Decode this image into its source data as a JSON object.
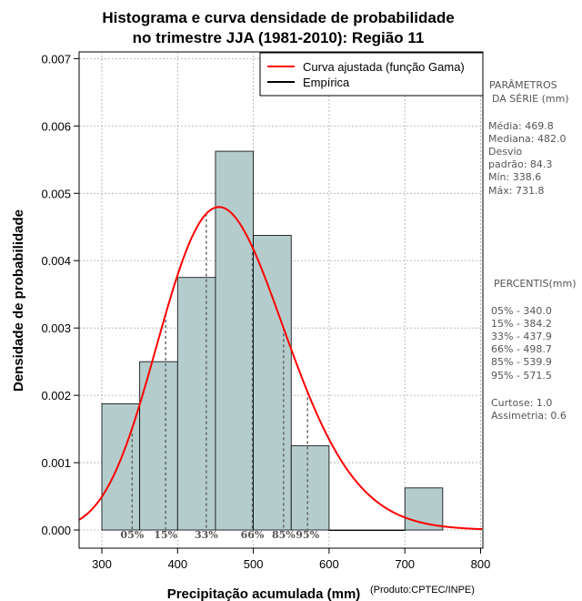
{
  "chart_data": {
    "type": "histogram",
    "title_line1": "Histograma e curva densidade de probabilidade",
    "title_line2": "no trimestre JJA (1981-2010): Região 11",
    "xlabel": "Precipitação acumulada (mm)",
    "ylabel": "Densidade de probabilidade",
    "credit": "(Produto:CPTEC/INPE)",
    "xlim": [
      270,
      803
    ],
    "ylim": [
      -0.00027,
      0.0071
    ],
    "x_ticks": [
      300,
      400,
      500,
      600,
      700,
      800
    ],
    "y_ticks": [
      0.0,
      0.001,
      0.002,
      0.003,
      0.004,
      0.005,
      0.006,
      0.007
    ],
    "y_tick_labels": [
      "0.000",
      "0.001",
      "0.002",
      "0.003",
      "0.004",
      "0.005",
      "0.006",
      "0.007"
    ],
    "bins": [
      {
        "start": 300,
        "end": 350,
        "density": 0.001875
      },
      {
        "start": 350,
        "end": 400,
        "density": 0.0025
      },
      {
        "start": 400,
        "end": 450,
        "density": 0.00375
      },
      {
        "start": 450,
        "end": 500,
        "density": 0.005625
      },
      {
        "start": 500,
        "end": 550,
        "density": 0.004375
      },
      {
        "start": 550,
        "end": 600,
        "density": 0.00125
      },
      {
        "start": 600,
        "end": 650,
        "density": 0.0
      },
      {
        "start": 650,
        "end": 700,
        "density": 0.0
      },
      {
        "start": 700,
        "end": 750,
        "density": 0.000625
      }
    ],
    "gamma_fit": {
      "mean": 469.8,
      "sd": 84.3
    },
    "legend": [
      {
        "label": "Curva ajustada (função Gama)",
        "color": "#ff0000"
      },
      {
        "label": "Empírica",
        "color": "#000000"
      }
    ],
    "percentile_markers": [
      {
        "label": "05%",
        "value": 340.0
      },
      {
        "label": "15%",
        "value": 384.2
      },
      {
        "label": "33%",
        "value": 437.9
      },
      {
        "label": "66%",
        "value": 498.7
      },
      {
        "label": "85%",
        "value": 539.9
      },
      {
        "label": "95%",
        "value": 571.5
      }
    ],
    "colors": {
      "bars": "#b4cccc",
      "curve": "#ff0000",
      "grid": "#aaaaaa"
    }
  },
  "side_panel": {
    "params_title_1": "PARÂMETROS",
    "params_title_2": "DA SÉRIE (mm)",
    "stats": [
      "Média:  469.8",
      "Mediana:  482.0",
      "Desvio",
      "padrão:  84.3",
      "Mín:  338.6",
      "Máx:  731.8"
    ],
    "percentis_title": "PERCENTIS(mm)",
    "percentis": [
      "05% -   340.0",
      "15% -   384.2",
      "33% -   437.9",
      "66% -   498.7",
      "85% -   539.9",
      "95% -   571.5"
    ],
    "shape": [
      "Curtose:  1.0",
      "Assimetria:  0.6"
    ]
  }
}
